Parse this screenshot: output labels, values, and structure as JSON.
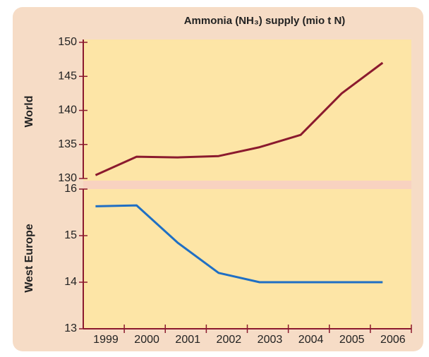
{
  "chart_data": [
    {
      "type": "line",
      "title": "Ammonia (NH₃) supply (mio t N)",
      "ylabel": "World",
      "categories": [
        "1999",
        "2000",
        "2001",
        "2002",
        "2003",
        "2004",
        "2005",
        "2006"
      ],
      "series": [
        {
          "color": "#8b1a2e",
          "values": [
            130.5,
            133.2,
            133.1,
            133.3,
            134.6,
            136.4,
            142.5,
            147.0
          ]
        }
      ],
      "ylim": [
        130,
        150
      ],
      "yticks": [
        130,
        135,
        140,
        145,
        150
      ]
    },
    {
      "type": "line",
      "ylabel": "West Europe",
      "categories": [
        "1999",
        "2000",
        "2001",
        "2002",
        "2003",
        "2004",
        "2005",
        "2006"
      ],
      "series": [
        {
          "color": "#1f6fc4",
          "values": [
            15.63,
            15.65,
            14.85,
            14.2,
            14.0,
            14.0,
            14.0,
            14.0
          ]
        }
      ],
      "ylim": [
        13,
        16
      ],
      "yticks": [
        13,
        14,
        15,
        16
      ]
    }
  ]
}
